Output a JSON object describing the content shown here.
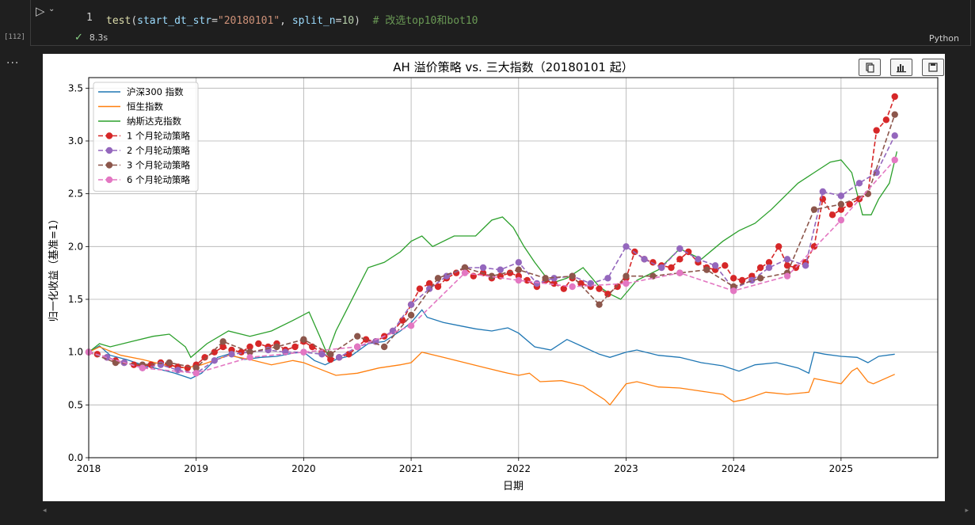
{
  "cell": {
    "run_icon": "run-triangle-icon",
    "execution_count": "[112]",
    "line_number": "1",
    "code": {
      "fn": "test",
      "open": "(",
      "p1": "start_dt_str",
      "eq1": "=",
      "v1": "\"20180101\"",
      "comma": ", ",
      "p2": "split_n",
      "eq2": "=",
      "v2": "10",
      "close": ")",
      "comment": "  # 改选top10和bot10"
    },
    "status_time": "8.3s",
    "language": "Python",
    "more": "..."
  },
  "toolbar": {
    "icons": [
      "copy-icon",
      "chart-icon",
      "save-icon"
    ]
  },
  "chart_data": {
    "type": "line",
    "title": "AH 溢价策略 vs. 三大指数（20180101 起）",
    "xlabel": "日期",
    "ylabel": "归一化收益（基准=1）",
    "xlim": [
      2018.0,
      2025.9
    ],
    "ylim": [
      0.0,
      3.6
    ],
    "xticks": [
      "2018",
      "2019",
      "2020",
      "2021",
      "2022",
      "2023",
      "2024",
      "2025"
    ],
    "yticks": [
      "0.0",
      "0.5",
      "1.0",
      "1.5",
      "2.0",
      "2.5",
      "3.0",
      "3.5"
    ],
    "grid": true,
    "legend": "top-left",
    "series": [
      {
        "name": "沪深300 指数",
        "color": "#1f77b4",
        "marker": false,
        "x": [
          2018.0,
          2018.1,
          2018.2,
          2018.35,
          2018.5,
          2018.65,
          2018.8,
          2018.95,
          2019.05,
          2019.2,
          2019.3,
          2019.45,
          2019.6,
          2019.75,
          2019.9,
          2020.0,
          2020.1,
          2020.2,
          2020.3,
          2020.45,
          2020.6,
          2020.75,
          2020.9,
          2021.0,
          2021.1,
          2021.15,
          2021.3,
          2021.45,
          2021.6,
          2021.75,
          2021.9,
          2022.0,
          2022.15,
          2022.3,
          2022.45,
          2022.6,
          2022.75,
          2022.85,
          2023.0,
          2023.1,
          2023.3,
          2023.5,
          2023.7,
          2023.9,
          2024.05,
          2024.2,
          2024.4,
          2024.6,
          2024.7,
          2024.75,
          2024.85,
          2025.0,
          2025.15,
          2025.25,
          2025.35,
          2025.5
        ],
        "y": [
          1.0,
          1.06,
          0.97,
          0.93,
          0.88,
          0.84,
          0.8,
          0.75,
          0.8,
          0.95,
          0.98,
          0.93,
          0.95,
          0.96,
          0.99,
          1.0,
          0.92,
          0.88,
          0.93,
          0.97,
          1.08,
          1.1,
          1.2,
          1.28,
          1.4,
          1.33,
          1.28,
          1.25,
          1.22,
          1.2,
          1.23,
          1.18,
          1.05,
          1.02,
          1.12,
          1.05,
          0.98,
          0.95,
          1.0,
          1.02,
          0.97,
          0.95,
          0.9,
          0.87,
          0.82,
          0.88,
          0.9,
          0.85,
          0.8,
          1.0,
          0.98,
          0.96,
          0.95,
          0.9,
          0.96,
          0.98
        ]
      },
      {
        "name": "恒生指数",
        "color": "#ff7f0e",
        "marker": false,
        "x": [
          2018.0,
          2018.1,
          2018.3,
          2018.5,
          2018.7,
          2018.9,
          2019.05,
          2019.3,
          2019.5,
          2019.7,
          2019.9,
          2020.0,
          2020.2,
          2020.3,
          2020.5,
          2020.7,
          2020.9,
          2021.0,
          2021.1,
          2021.3,
          2021.5,
          2021.7,
          2021.9,
          2022.0,
          2022.1,
          2022.2,
          2022.4,
          2022.6,
          2022.8,
          2022.85,
          2023.0,
          2023.1,
          2023.3,
          2023.5,
          2023.7,
          2023.9,
          2024.0,
          2024.1,
          2024.3,
          2024.5,
          2024.7,
          2024.75,
          2024.9,
          2025.0,
          2025.1,
          2025.15,
          2025.25,
          2025.3,
          2025.5
        ],
        "y": [
          1.0,
          1.05,
          0.97,
          0.93,
          0.88,
          0.85,
          0.88,
          0.97,
          0.93,
          0.88,
          0.92,
          0.9,
          0.82,
          0.78,
          0.8,
          0.85,
          0.88,
          0.9,
          1.0,
          0.95,
          0.9,
          0.85,
          0.8,
          0.78,
          0.8,
          0.72,
          0.73,
          0.68,
          0.55,
          0.5,
          0.7,
          0.72,
          0.67,
          0.66,
          0.63,
          0.6,
          0.53,
          0.55,
          0.62,
          0.6,
          0.62,
          0.75,
          0.72,
          0.7,
          0.82,
          0.85,
          0.72,
          0.7,
          0.79
        ]
      },
      {
        "name": "纳斯达克指数",
        "color": "#2ca02c",
        "marker": false,
        "x": [
          2018.0,
          2018.1,
          2018.2,
          2018.4,
          2018.6,
          2018.75,
          2018.9,
          2018.95,
          2019.1,
          2019.3,
          2019.5,
          2019.7,
          2019.9,
          2020.05,
          2020.15,
          2020.22,
          2020.3,
          2020.4,
          2020.5,
          2020.6,
          2020.75,
          2020.9,
          2021.0,
          2021.1,
          2021.2,
          2021.4,
          2021.6,
          2021.75,
          2021.85,
          2021.95,
          2022.05,
          2022.15,
          2022.3,
          2022.45,
          2022.6,
          2022.75,
          2022.85,
          2022.95,
          2023.1,
          2023.3,
          2023.5,
          2023.7,
          2023.9,
          2024.05,
          2024.2,
          2024.35,
          2024.5,
          2024.6,
          2024.75,
          2024.9,
          2025.0,
          2025.1,
          2025.2,
          2025.28,
          2025.35,
          2025.45,
          2025.52
        ],
        "y": [
          1.0,
          1.08,
          1.05,
          1.1,
          1.15,
          1.17,
          1.05,
          0.95,
          1.08,
          1.2,
          1.15,
          1.2,
          1.3,
          1.38,
          1.15,
          0.98,
          1.2,
          1.4,
          1.6,
          1.8,
          1.85,
          1.95,
          2.05,
          2.1,
          2.0,
          2.1,
          2.1,
          2.25,
          2.28,
          2.18,
          2.0,
          1.85,
          1.65,
          1.7,
          1.8,
          1.62,
          1.55,
          1.5,
          1.68,
          1.78,
          1.98,
          1.88,
          2.05,
          2.15,
          2.22,
          2.35,
          2.5,
          2.6,
          2.7,
          2.8,
          2.82,
          2.7,
          2.3,
          2.3,
          2.45,
          2.6,
          2.9
        ]
      },
      {
        "name": "1 个月轮动策略",
        "color": "#d62728",
        "marker": true,
        "x": [
          2018.0,
          2018.08,
          2018.17,
          2018.25,
          2018.33,
          2018.42,
          2018.5,
          2018.58,
          2018.67,
          2018.75,
          2018.83,
          2018.92,
          2019.0,
          2019.08,
          2019.17,
          2019.25,
          2019.33,
          2019.42,
          2019.5,
          2019.58,
          2019.67,
          2019.75,
          2019.83,
          2019.92,
          2020.0,
          2020.08,
          2020.17,
          2020.25,
          2020.33,
          2020.42,
          2020.5,
          2020.58,
          2020.67,
          2020.75,
          2020.83,
          2020.92,
          2021.0,
          2021.08,
          2021.17,
          2021.25,
          2021.33,
          2021.42,
          2021.5,
          2021.58,
          2021.67,
          2021.75,
          2021.83,
          2021.92,
          2022.0,
          2022.08,
          2022.17,
          2022.25,
          2022.33,
          2022.42,
          2022.5,
          2022.58,
          2022.67,
          2022.75,
          2022.83,
          2022.92,
          2023.0,
          2023.08,
          2023.17,
          2023.25,
          2023.33,
          2023.42,
          2023.5,
          2023.58,
          2023.67,
          2023.75,
          2023.83,
          2023.92,
          2024.0,
          2024.08,
          2024.17,
          2024.25,
          2024.33,
          2024.42,
          2024.5,
          2024.58,
          2024.67,
          2024.75,
          2024.83,
          2024.92,
          2025.0,
          2025.08,
          2025.17,
          2025.25,
          2025.33,
          2025.42,
          2025.5
        ],
        "y": [
          1.0,
          0.98,
          0.95,
          0.92,
          0.9,
          0.88,
          0.87,
          0.88,
          0.9,
          0.88,
          0.86,
          0.85,
          0.88,
          0.95,
          1.0,
          1.05,
          1.02,
          1.0,
          1.05,
          1.08,
          1.05,
          1.08,
          1.02,
          1.05,
          1.1,
          1.05,
          1.0,
          0.93,
          0.95,
          0.98,
          1.05,
          1.12,
          1.1,
          1.15,
          1.2,
          1.3,
          1.45,
          1.6,
          1.65,
          1.62,
          1.7,
          1.75,
          1.8,
          1.72,
          1.75,
          1.7,
          1.72,
          1.75,
          1.72,
          1.68,
          1.62,
          1.68,
          1.65,
          1.6,
          1.7,
          1.65,
          1.62,
          1.6,
          1.55,
          1.62,
          1.7,
          1.95,
          1.88,
          1.85,
          1.82,
          1.8,
          1.88,
          1.95,
          1.85,
          1.8,
          1.78,
          1.82,
          1.7,
          1.68,
          1.72,
          1.8,
          1.85,
          2.0,
          1.82,
          1.8,
          1.85,
          2.0,
          2.45,
          2.3,
          2.35,
          2.4,
          2.45,
          2.5,
          3.1,
          3.2,
          3.42
        ]
      },
      {
        "name": "2 个月轮动策略",
        "color": "#9467bd",
        "marker": true,
        "x": [
          2018.0,
          2018.17,
          2018.33,
          2018.5,
          2018.67,
          2018.83,
          2019.0,
          2019.17,
          2019.33,
          2019.5,
          2019.67,
          2019.83,
          2020.0,
          2020.17,
          2020.33,
          2020.5,
          2020.67,
          2020.83,
          2021.0,
          2021.17,
          2021.33,
          2021.5,
          2021.67,
          2021.83,
          2022.0,
          2022.17,
          2022.33,
          2022.5,
          2022.67,
          2022.83,
          2023.0,
          2023.17,
          2023.33,
          2023.5,
          2023.67,
          2023.83,
          2024.0,
          2024.17,
          2024.33,
          2024.5,
          2024.67,
          2024.83,
          2025.0,
          2025.17,
          2025.33,
          2025.5
        ],
        "y": [
          1.0,
          0.95,
          0.9,
          0.85,
          0.88,
          0.83,
          0.8,
          0.92,
          0.98,
          1.0,
          1.02,
          1.0,
          1.0,
          0.98,
          0.95,
          1.05,
          1.1,
          1.2,
          1.45,
          1.6,
          1.72,
          1.8,
          1.8,
          1.78,
          1.85,
          1.65,
          1.7,
          1.72,
          1.65,
          1.7,
          2.0,
          1.88,
          1.8,
          1.98,
          1.88,
          1.82,
          1.6,
          1.68,
          1.8,
          1.88,
          1.82,
          2.52,
          2.48,
          2.6,
          2.7,
          3.05
        ]
      },
      {
        "name": "3 个月轮动策略",
        "color": "#8c564b",
        "marker": true,
        "x": [
          2018.0,
          2018.25,
          2018.5,
          2018.75,
          2019.0,
          2019.25,
          2019.5,
          2019.75,
          2020.0,
          2020.25,
          2020.5,
          2020.75,
          2021.0,
          2021.25,
          2021.5,
          2021.75,
          2022.0,
          2022.25,
          2022.5,
          2022.75,
          2023.0,
          2023.25,
          2023.5,
          2023.75,
          2024.0,
          2024.25,
          2024.5,
          2024.75,
          2025.0,
          2025.25,
          2025.5
        ],
        "y": [
          1.0,
          0.9,
          0.88,
          0.9,
          0.85,
          1.1,
          1.0,
          1.05,
          1.12,
          0.98,
          1.15,
          1.05,
          1.35,
          1.7,
          1.8,
          1.72,
          1.78,
          1.7,
          1.72,
          1.45,
          1.72,
          1.72,
          1.75,
          1.78,
          1.62,
          1.7,
          1.75,
          2.35,
          2.4,
          2.5,
          3.25
        ]
      },
      {
        "name": "6 个月轮动策略",
        "color": "#e377c2",
        "marker": true,
        "x": [
          2018.0,
          2018.5,
          2019.0,
          2019.5,
          2020.0,
          2020.5,
          2021.0,
          2021.5,
          2022.0,
          2022.5,
          2023.0,
          2023.5,
          2024.0,
          2024.5,
          2025.0,
          2025.5
        ],
        "y": [
          1.0,
          0.85,
          0.8,
          0.95,
          1.0,
          1.05,
          1.25,
          1.75,
          1.68,
          1.62,
          1.65,
          1.75,
          1.58,
          1.72,
          2.25,
          2.82
        ]
      }
    ]
  }
}
